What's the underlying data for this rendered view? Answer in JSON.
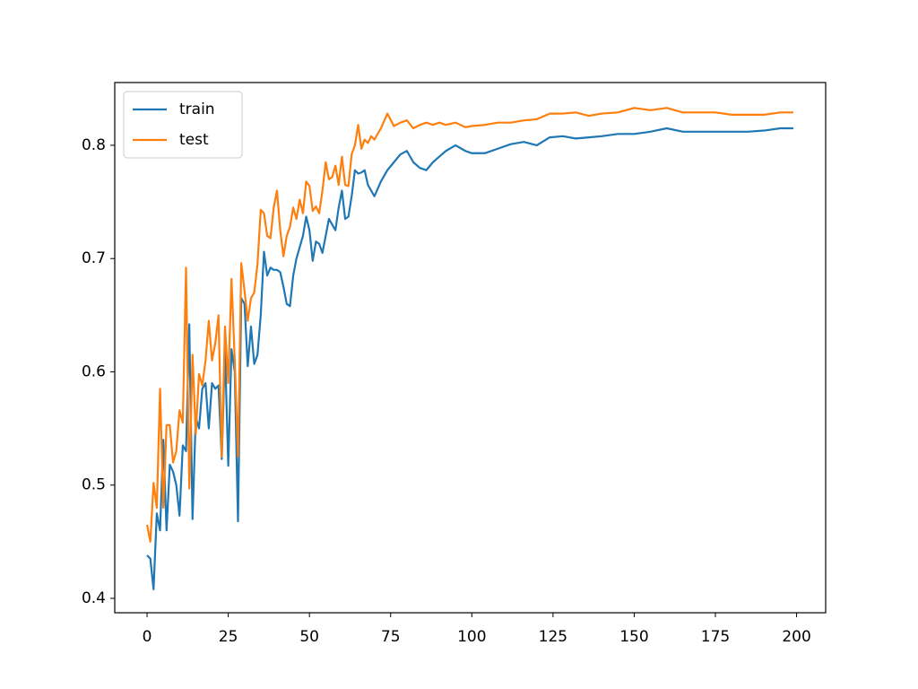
{
  "chart_data": {
    "type": "line",
    "x": [
      0,
      1,
      2,
      3,
      4,
      5,
      6,
      7,
      8,
      9,
      10,
      11,
      12,
      13,
      14,
      15,
      16,
      17,
      18,
      19,
      20,
      21,
      22,
      23,
      24,
      25,
      26,
      27,
      28,
      29,
      30,
      31,
      32,
      33,
      34,
      35,
      36,
      37,
      38,
      39,
      40,
      41,
      42,
      43,
      44,
      45,
      46,
      47,
      48,
      49,
      50,
      51,
      52,
      53,
      54,
      55,
      56,
      57,
      58,
      59,
      60,
      61,
      62,
      63,
      64,
      65,
      66,
      67,
      68,
      69,
      70,
      72,
      74,
      76,
      78,
      80,
      82,
      84,
      86,
      88,
      90,
      92,
      95,
      98,
      100,
      104,
      108,
      112,
      116,
      120,
      124,
      128,
      132,
      136,
      140,
      145,
      150,
      155,
      160,
      165,
      170,
      175,
      180,
      185,
      190,
      195,
      199
    ],
    "series": [
      {
        "name": "train",
        "color": "#1f77b4",
        "values": [
          0.438,
          0.435,
          0.408,
          0.475,
          0.46,
          0.54,
          0.46,
          0.518,
          0.512,
          0.5,
          0.473,
          0.535,
          0.53,
          0.642,
          0.47,
          0.56,
          0.55,
          0.585,
          0.59,
          0.55,
          0.59,
          0.585,
          0.588,
          0.523,
          0.62,
          0.517,
          0.62,
          0.6,
          0.468,
          0.665,
          0.66,
          0.605,
          0.64,
          0.607,
          0.615,
          0.65,
          0.706,
          0.685,
          0.692,
          0.69,
          0.69,
          0.688,
          0.675,
          0.66,
          0.658,
          0.685,
          0.7,
          0.71,
          0.72,
          0.737,
          0.725,
          0.698,
          0.715,
          0.713,
          0.705,
          0.72,
          0.735,
          0.73,
          0.725,
          0.745,
          0.76,
          0.735,
          0.737,
          0.755,
          0.778,
          0.775,
          0.776,
          0.778,
          0.765,
          0.76,
          0.755,
          0.768,
          0.778,
          0.785,
          0.792,
          0.795,
          0.785,
          0.78,
          0.778,
          0.785,
          0.79,
          0.795,
          0.8,
          0.795,
          0.793,
          0.793,
          0.797,
          0.801,
          0.803,
          0.8,
          0.807,
          0.808,
          0.806,
          0.807,
          0.808,
          0.81,
          0.81,
          0.812,
          0.815,
          0.812,
          0.812,
          0.812,
          0.812,
          0.812,
          0.813,
          0.815,
          0.815
        ]
      },
      {
        "name": "test",
        "color": "#ff7f0e",
        "values": [
          0.465,
          0.45,
          0.502,
          0.48,
          0.585,
          0.48,
          0.553,
          0.553,
          0.52,
          0.53,
          0.566,
          0.555,
          0.692,
          0.497,
          0.615,
          0.545,
          0.598,
          0.588,
          0.61,
          0.645,
          0.61,
          0.625,
          0.65,
          0.525,
          0.64,
          0.59,
          0.682,
          0.61,
          0.525,
          0.696,
          0.672,
          0.645,
          0.665,
          0.67,
          0.695,
          0.743,
          0.74,
          0.72,
          0.718,
          0.745,
          0.76,
          0.725,
          0.702,
          0.72,
          0.728,
          0.745,
          0.735,
          0.752,
          0.74,
          0.768,
          0.764,
          0.742,
          0.746,
          0.74,
          0.76,
          0.785,
          0.77,
          0.772,
          0.782,
          0.765,
          0.79,
          0.765,
          0.764,
          0.792,
          0.8,
          0.818,
          0.797,
          0.805,
          0.802,
          0.808,
          0.805,
          0.815,
          0.828,
          0.817,
          0.82,
          0.822,
          0.815,
          0.818,
          0.82,
          0.818,
          0.82,
          0.818,
          0.82,
          0.816,
          0.817,
          0.818,
          0.82,
          0.82,
          0.822,
          0.823,
          0.828,
          0.828,
          0.829,
          0.826,
          0.828,
          0.829,
          0.833,
          0.831,
          0.833,
          0.829,
          0.829,
          0.829,
          0.827,
          0.827,
          0.827,
          0.829,
          0.829
        ]
      }
    ],
    "xlim": [
      -9.95,
      208.95
    ],
    "ylim": [
      0.3873,
      0.8554
    ],
    "xticks": [
      0,
      25,
      50,
      75,
      100,
      125,
      150,
      175,
      200
    ],
    "yticks": [
      0.4,
      0.5,
      0.6,
      0.7,
      0.8
    ],
    "legend": "upper left"
  }
}
